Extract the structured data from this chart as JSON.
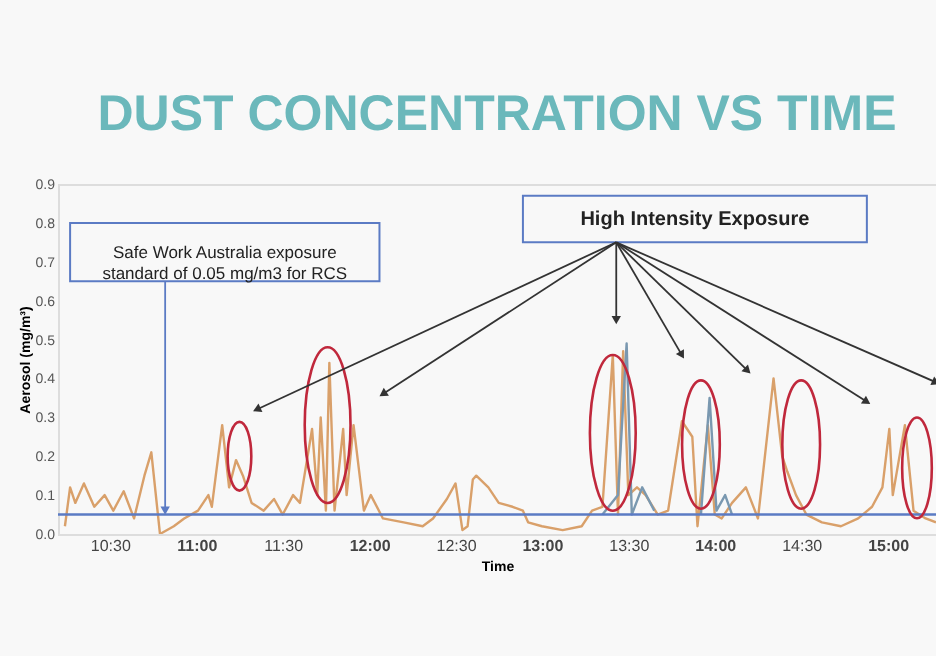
{
  "chart_data": {
    "type": "line",
    "title": "DUST CONCENTRATION VS TIME",
    "xlabel": "Time",
    "ylabel": "Aerosol (mg/m³)",
    "xlim": [
      10.2,
      15.28
    ],
    "xticks": [
      {
        "value": 10.5,
        "label": "10:30"
      },
      {
        "value": 11,
        "label": "11:00"
      },
      {
        "value": 11.5,
        "label": "11:30"
      },
      {
        "value": 12,
        "label": "12:00"
      },
      {
        "value": 12.5,
        "label": "12:30"
      },
      {
        "value": 13,
        "label": "13:00"
      },
      {
        "value": 13.5,
        "label": "13:30"
      },
      {
        "value": 14,
        "label": "14:00"
      },
      {
        "value": 14.5,
        "label": "14:30"
      },
      {
        "value": 15,
        "label": "15:00"
      }
    ],
    "ylim": [
      0,
      0.9
    ],
    "yticks": [
      {
        "value": 0,
        "label": "0.0"
      },
      {
        "value": 0.1,
        "label": "0.1"
      },
      {
        "value": 0.2,
        "label": "0.2"
      },
      {
        "value": 0.3,
        "label": "0.3"
      },
      {
        "value": 0.4,
        "label": "0.4"
      },
      {
        "value": 0.5,
        "label": "0.5"
      },
      {
        "value": 0.6,
        "label": "0.6"
      },
      {
        "value": 0.7,
        "label": "0.7"
      },
      {
        "value": 0.8,
        "label": "0.8"
      },
      {
        "value": 0.9,
        "label": "0.9"
      }
    ],
    "grid": false,
    "series": [
      {
        "color": "#d9a06a",
        "x": [
          10.24,
          10.27,
          10.3,
          10.35,
          10.41,
          10.47,
          10.52,
          10.58,
          10.64,
          10.7,
          10.74,
          10.79,
          10.87,
          10.93,
          11.01,
          11.07,
          11.09,
          11.15,
          11.19,
          11.23,
          11.27,
          11.32,
          11.39,
          11.45,
          11.5,
          11.56,
          11.6,
          11.67,
          11.7,
          11.72,
          11.75,
          11.77,
          11.8,
          11.85,
          11.87,
          11.91,
          11.97,
          12.01,
          12.08,
          12.2,
          12.31,
          12.37,
          12.45,
          12.5,
          12.54,
          12.57,
          12.6,
          12.62,
          12.69,
          12.75,
          12.83,
          12.89,
          12.92,
          13.0,
          13.12,
          13.23,
          13.29,
          13.35,
          13.41,
          13.44,
          13.47,
          13.5,
          13.55,
          13.6,
          13.67,
          13.73,
          13.81,
          13.87,
          13.9,
          13.96,
          14.0,
          14.04,
          14.1,
          14.18,
          14.25,
          14.34,
          14.39,
          14.42,
          14.47,
          14.53,
          14.62,
          14.73,
          14.83,
          14.91,
          14.97,
          15.01,
          15.03,
          15.1,
          15.15,
          15.22,
          15.28
        ],
        "values": [
          0.02,
          0.12,
          0.08,
          0.13,
          0.07,
          0.1,
          0.06,
          0.11,
          0.04,
          0.15,
          0.21,
          0.0,
          0.02,
          0.04,
          0.06,
          0.1,
          0.07,
          0.28,
          0.12,
          0.19,
          0.15,
          0.08,
          0.06,
          0.09,
          0.05,
          0.1,
          0.08,
          0.27,
          0.1,
          0.3,
          0.06,
          0.44,
          0.06,
          0.27,
          0.1,
          0.28,
          0.06,
          0.1,
          0.04,
          0.03,
          0.02,
          0.04,
          0.09,
          0.13,
          0.01,
          0.02,
          0.14,
          0.15,
          0.12,
          0.08,
          0.07,
          0.06,
          0.03,
          0.02,
          0.01,
          0.02,
          0.06,
          0.07,
          0.46,
          0.05,
          0.47,
          0.1,
          0.12,
          0.1,
          0.05,
          0.06,
          0.29,
          0.25,
          0.02,
          0.28,
          0.05,
          0.04,
          0.08,
          0.12,
          0.04,
          0.4,
          0.2,
          0.16,
          0.1,
          0.05,
          0.03,
          0.02,
          0.04,
          0.07,
          0.12,
          0.27,
          0.1,
          0.28,
          0.06,
          0.04,
          0.03
        ]
      },
      {
        "color": "#7a98b0",
        "x": [
          13.35,
          13.44,
          13.49,
          13.52,
          13.58,
          13.65,
          13.75,
          13.92,
          13.97,
          14.01,
          14.06,
          14.1
        ],
        "values": [
          0.05,
          0.1,
          0.49,
          0.05,
          0.12,
          0.06,
          null,
          0.05,
          0.35,
          0.06,
          0.1,
          0.05
        ]
      }
    ],
    "ref_lines": [
      {
        "axis": "y",
        "value": 0.05,
        "color": "#5b7bc4"
      }
    ],
    "annotations": [
      {
        "text": "Safe Work Australia exposure standard of 0.05 mg/m3 for RCS",
        "x": 10.82,
        "y": 0.05
      },
      "High Intensity Exposure"
    ]
  }
}
